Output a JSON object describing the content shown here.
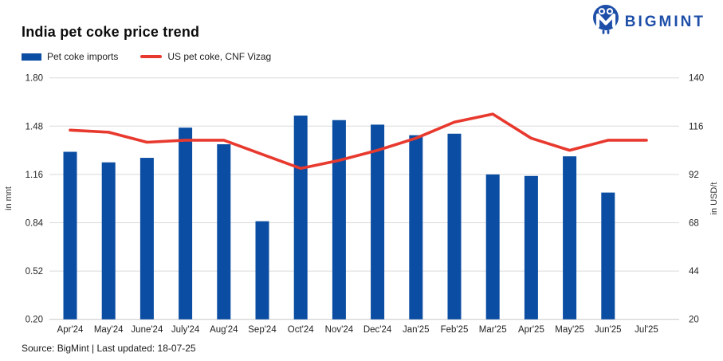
{
  "header": {
    "title": "India pet coke price trend",
    "logo_text": "BIGMINT"
  },
  "legend": [
    {
      "label": "Pet coke imports",
      "type": "bar",
      "color": "#0a4da2"
    },
    {
      "label": "US pet coke, CNF Vizag",
      "type": "line",
      "color": "#e8392e"
    }
  ],
  "footer": {
    "source": "Source: BigMint | Last updated: 18-07-25"
  },
  "colors": {
    "bar": "#0a4da2",
    "line": "#e8392e",
    "logo": "#1d4ea8",
    "gridline": "#dadada",
    "baseline": "#c8c8c8"
  },
  "chart_data": {
    "type": "bar",
    "subtype": "bar+line dual axis",
    "title": "India pet coke price trend",
    "categories": [
      "Apr'24",
      "May'24",
      "June'24",
      "July'24",
      "Aug'24",
      "Sep'24",
      "Oct'24",
      "Nov'24",
      "Dec'24",
      "Jan'25",
      "Feb'25",
      "Mar'25",
      "Apr'25",
      "May'25",
      "Jun'25",
      "Jul'25"
    ],
    "series": [
      {
        "name": "Pet coke imports",
        "type": "bar",
        "axis": "left",
        "unit": "mnt",
        "color": "#0a4da2",
        "values": [
          1.31,
          1.24,
          1.27,
          1.47,
          1.36,
          0.85,
          1.55,
          1.52,
          1.49,
          1.42,
          1.43,
          1.16,
          1.15,
          1.28,
          1.04,
          null
        ]
      },
      {
        "name": "US pet coke, CNF Vizag",
        "type": "line",
        "axis": "right",
        "unit": "USD/t",
        "color": "#e8392e",
        "values": [
          114,
          113,
          108,
          109,
          109,
          102,
          95,
          99,
          104,
          110,
          118,
          122,
          110,
          104,
          109,
          109
        ]
      }
    ],
    "left_axis": {
      "label": "in mnt",
      "ticks": [
        "1.80",
        "1.48",
        "1.16",
        "0.84",
        "0.52",
        "0.20"
      ],
      "range": [
        0.2,
        1.8
      ]
    },
    "right_axis": {
      "label": "in USD/t",
      "ticks": [
        "140",
        "116",
        "92",
        "68",
        "44",
        "20"
      ],
      "range": [
        20,
        140
      ]
    },
    "grid": true,
    "legend_position": "top-left"
  }
}
